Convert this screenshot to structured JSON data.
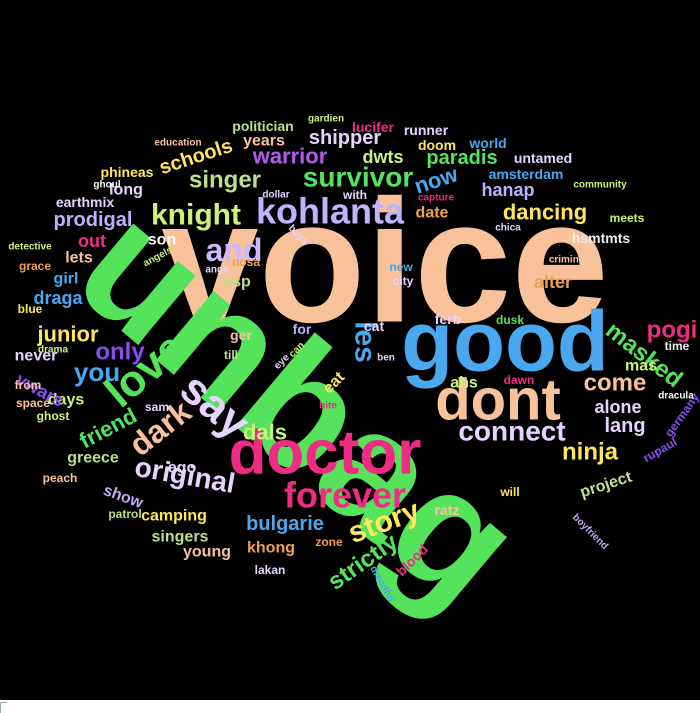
{
  "words": [
    {
      "t": "voice",
      "c": "#f9c29a"
    },
    {
      "t": "unbag",
      "c": "#56e35c"
    },
    {
      "t": "good",
      "c": "#4aa8f0"
    },
    {
      "t": "doctor",
      "c": "#ef2b84"
    },
    {
      "t": "dont",
      "c": "#f9c29a"
    },
    {
      "t": "forever",
      "c": "#ef2b84"
    },
    {
      "t": "say",
      "c": "#e6d3ff"
    },
    {
      "t": "love",
      "c": "#56e35c"
    },
    {
      "t": "kohlanta",
      "c": "#bfb3ff"
    },
    {
      "t": "survivor",
      "c": "#56e35c"
    },
    {
      "t": "knight",
      "c": "#ccf27a"
    },
    {
      "t": "and",
      "c": "#cdb8ff"
    },
    {
      "t": "only",
      "c": "#8a4df2"
    },
    {
      "t": "dark",
      "c": "#f9c29a"
    },
    {
      "t": "you",
      "c": "#4aa8f0"
    },
    {
      "t": "original",
      "c": "#e6d3ff"
    },
    {
      "t": "connect",
      "c": "#e6d3ff"
    },
    {
      "t": "story",
      "c": "#ffe65c"
    },
    {
      "t": "les",
      "c": "#4aa8f0"
    },
    {
      "t": "warrior",
      "c": "#b45cf2"
    },
    {
      "t": "singer",
      "c": "#bfdf8a"
    },
    {
      "t": "now",
      "c": "#4aa8f0"
    },
    {
      "t": "dancing",
      "c": "#ffe65c"
    },
    {
      "t": "masked",
      "c": "#56e35c"
    },
    {
      "t": "come",
      "c": "#f9c29a"
    },
    {
      "t": "ninja",
      "c": "#ffe65c"
    },
    {
      "t": "strictly",
      "c": "#56e35c"
    },
    {
      "t": "bulgarie",
      "c": "#4aa8f0"
    },
    {
      "t": "dals",
      "c": "#ccf27a"
    },
    {
      "t": "friend",
      "c": "#56e35c"
    },
    {
      "t": "junior",
      "c": "#ffe65c"
    },
    {
      "t": "prodigal",
      "c": "#b9b3ff"
    },
    {
      "t": "schools",
      "c": "#ffe65c"
    },
    {
      "t": "shipper",
      "c": "#e6d3ff"
    },
    {
      "t": "paradis",
      "c": "#56e35c"
    },
    {
      "t": "dwts",
      "c": "#ccf27a"
    },
    {
      "t": "hanap",
      "c": "#b9b3ff"
    },
    {
      "t": "alter",
      "c": "#f0a050"
    },
    {
      "t": "pogi",
      "c": "#ef2b84"
    },
    {
      "t": "lang",
      "c": "#e6d3ff"
    },
    {
      "t": "alone",
      "c": "#e6d3ff"
    },
    {
      "t": "greece",
      "c": "#bfdf8a"
    },
    {
      "t": "ego",
      "c": "#e6d3ff"
    },
    {
      "t": "camping",
      "c": "#ffe65c"
    },
    {
      "t": "singers",
      "c": "#bfdf8a"
    },
    {
      "t": "young",
      "c": "#f9c29a"
    },
    {
      "t": "khong",
      "c": "#f0a050"
    },
    {
      "t": "project",
      "c": "#bfdf8a"
    },
    {
      "t": "show",
      "c": "#c2a8f0"
    },
    {
      "t": "draga",
      "c": "#4aa8f0"
    },
    {
      "t": "girl",
      "c": "#4aa8f0"
    },
    {
      "t": "lets",
      "c": "#f9c29a"
    },
    {
      "t": "out",
      "c": "#ef2b84"
    },
    {
      "t": "never",
      "c": "#e6d3ff"
    },
    {
      "t": "days",
      "c": "#ccf27a"
    },
    {
      "t": "vwars",
      "c": "#8a4df2"
    },
    {
      "t": "son",
      "c": "#ffffff"
    },
    {
      "t": "esp",
      "c": "#bfdf8a"
    },
    {
      "t": "long",
      "c": "#e6d3ff"
    },
    {
      "t": "date",
      "c": "#f0a050"
    },
    {
      "t": "years",
      "c": "#f9c29a"
    },
    {
      "t": "eat",
      "c": "#ffe65c"
    },
    {
      "t": "ahs",
      "c": "#ccf27a"
    },
    {
      "t": "mas",
      "c": "#ccf27a"
    },
    {
      "t": "time",
      "c": "#f0f0f0"
    },
    {
      "t": "rupaul",
      "c": "#8a4df2"
    },
    {
      "t": "germany",
      "c": "#8a4df2"
    },
    {
      "t": "dracula",
      "c": "#ffffff"
    },
    {
      "t": "dawn",
      "c": "#ef2b84"
    },
    {
      "t": "dusk",
      "c": "#56e35c"
    },
    {
      "t": "ferb",
      "c": "#e6d3ff"
    },
    {
      "t": "cat",
      "c": "#e6d3ff"
    },
    {
      "t": "for",
      "c": "#b9b3ff"
    },
    {
      "t": "ger",
      "c": "#f9c29a"
    },
    {
      "t": "till",
      "c": "#bfdf8a"
    },
    {
      "t": "nosa",
      "c": "#f0a050"
    },
    {
      "t": "ratz",
      "c": "#f9c29a"
    },
    {
      "t": "zone",
      "c": "#f0a050"
    },
    {
      "t": "blood",
      "c": "#ef2b84"
    },
    {
      "t": "lakan",
      "c": "#e6d3ff"
    },
    {
      "t": "will",
      "c": "#ffe65c"
    },
    {
      "t": "boyfriend",
      "c": "#c2a8f0"
    },
    {
      "t": "dreadful",
      "c": "#4aa8f0"
    },
    {
      "t": "patrol",
      "c": "#bfdf8a"
    },
    {
      "t": "peach",
      "c": "#f9c29a"
    },
    {
      "t": "ghost",
      "c": "#ccf27a"
    },
    {
      "t": "space",
      "c": "#f9c29a"
    },
    {
      "t": "from",
      "c": "#f9c29a"
    },
    {
      "t": "sam",
      "c": "#e6d3ff"
    },
    {
      "t": "grace",
      "c": "#f0a050"
    },
    {
      "t": "blue",
      "c": "#ffe65c"
    },
    {
      "t": "detective",
      "c": "#ccf27a"
    },
    {
      "t": "drama",
      "c": "#ccf27a"
    },
    {
      "t": "ghoul",
      "c": "#ffffff"
    },
    {
      "t": "earthmix",
      "c": "#e6d3ff"
    },
    {
      "t": "phineas",
      "c": "#ffe65c"
    },
    {
      "t": "education",
      "c": "#f9c29a"
    },
    {
      "t": "politician",
      "c": "#bfdf8a"
    },
    {
      "t": "gardien",
      "c": "#ccf27a"
    },
    {
      "t": "lucifer",
      "c": "#ef2b84"
    },
    {
      "t": "runner",
      "c": "#e6d3ff"
    },
    {
      "t": "doom",
      "c": "#ffe65c"
    },
    {
      "t": "world",
      "c": "#4aa8f0"
    },
    {
      "t": "untamed",
      "c": "#e6d3ff"
    },
    {
      "t": "amsterdam",
      "c": "#4aa8f0"
    },
    {
      "t": "community",
      "c": "#ccf27a"
    },
    {
      "t": "capture",
      "c": "#ef2b84"
    },
    {
      "t": "meets",
      "c": "#ccf27a"
    },
    {
      "t": "chica",
      "c": "#e6d3ff"
    },
    {
      "t": "criminal",
      "c": "#f9c29a"
    },
    {
      "t": "hsmtmts",
      "c": "#f0f0f0"
    },
    {
      "t": "dollar",
      "c": "#e6d3ff"
    },
    {
      "t": "with",
      "c": "#e6d3ff"
    },
    {
      "t": "boys",
      "c": "#e6d3ff"
    },
    {
      "t": "angels",
      "c": "#ccf27a"
    },
    {
      "t": "ange",
      "c": "#e6d3ff"
    },
    {
      "t": "new",
      "c": "#4aa8f0"
    },
    {
      "t": "city",
      "c": "#e6d3ff"
    },
    {
      "t": "eye",
      "c": "#e6d3ff"
    },
    {
      "t": "can",
      "c": "#ccf27a"
    },
    {
      "t": "ben",
      "c": "#e6d3ff"
    },
    {
      "t": "bite",
      "c": "#ef2b84"
    }
  ]
}
